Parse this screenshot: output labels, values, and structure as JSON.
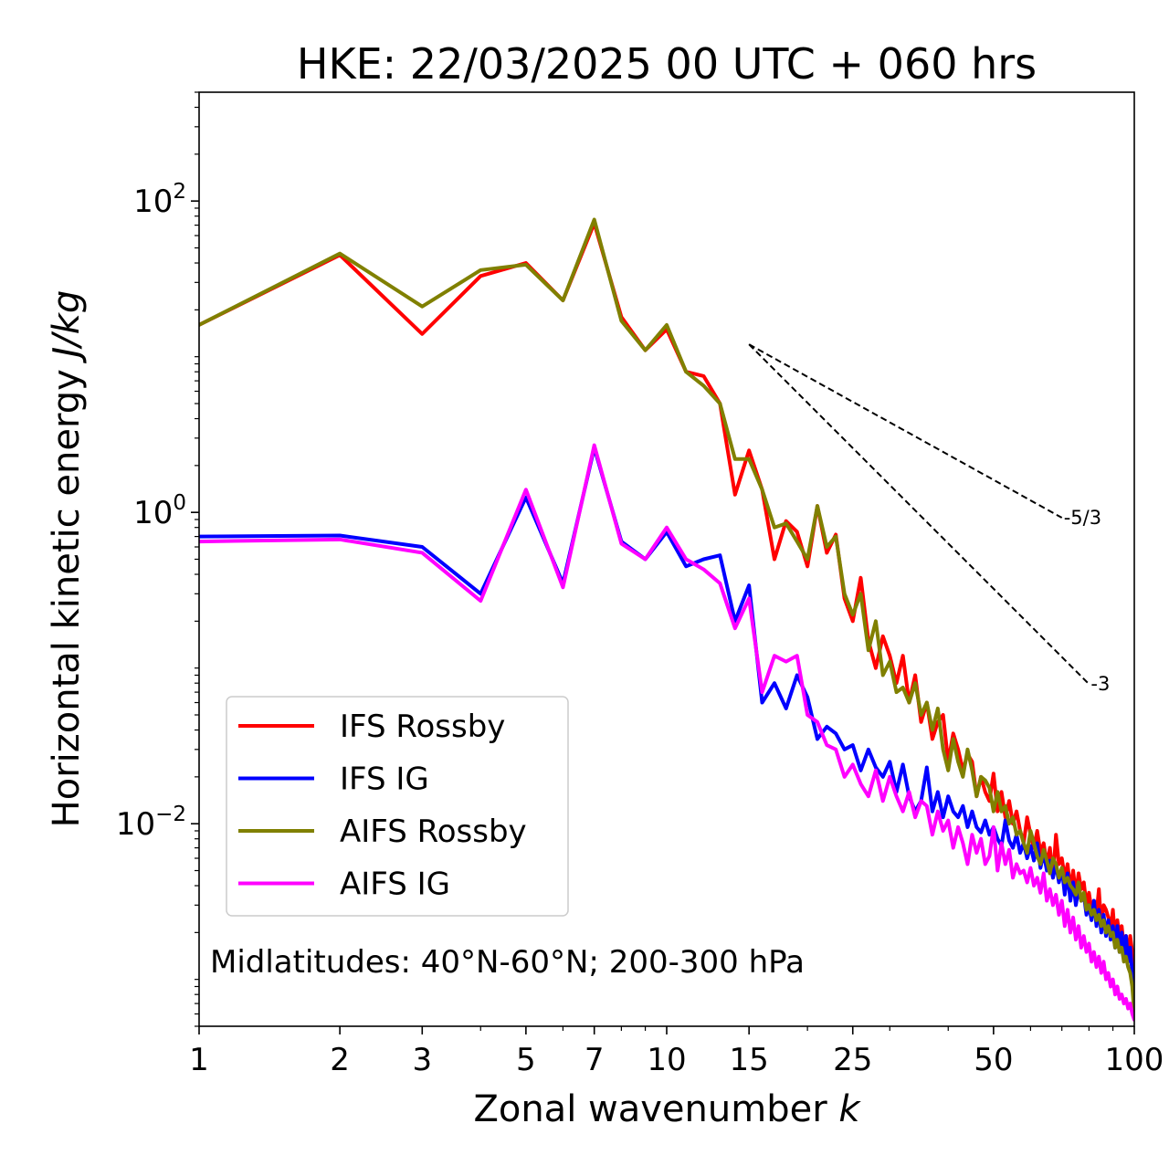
{
  "chart_data": {
    "type": "line",
    "title": "HKE: 22/03/2025 00 UTC + 060 hrs",
    "xlabel_main": "Zonal wavenumber ",
    "xlabel_var": "k",
    "ylabel_main": "Horizontal kinetic energy ",
    "ylabel_unit": "J/kg",
    "x_scale": "log",
    "y_scale": "log",
    "xlim": [
      1,
      100
    ],
    "ylim": [
      0.0005,
      500
    ],
    "x_ticks": [
      1,
      2,
      3,
      5,
      7,
      10,
      15,
      25,
      50,
      100
    ],
    "x_tick_labels": [
      "1",
      "2",
      "3",
      "5",
      "7",
      "10",
      "15",
      "25",
      "50",
      "100"
    ],
    "y_ticks": [
      {
        "value": 100,
        "base": "10",
        "exp": "2"
      },
      {
        "value": 1,
        "base": "10",
        "exp": "0"
      },
      {
        "value": 0.01,
        "base": "10",
        "exp": "−2"
      }
    ],
    "annotation": "Midlatitudes: 40°N-60°N; 200-300 hPa",
    "legend_position": "lower-left",
    "grid": false,
    "reference_lines": [
      {
        "label": "-5/3",
        "x": [
          15,
          70
        ],
        "y": [
          12.0,
          0.924
        ],
        "style": "dashed"
      },
      {
        "label": "-3",
        "x": [
          15,
          80
        ],
        "y": [
          12.0,
          0.0789
        ],
        "style": "dashed"
      }
    ],
    "series": [
      {
        "name": "IFS Rossby",
        "color": "#ff0000",
        "x": [
          1,
          2,
          3,
          4,
          5,
          6,
          7,
          8,
          9,
          10,
          11,
          12,
          13,
          14,
          15,
          16,
          17,
          18,
          19,
          20,
          21,
          22,
          23,
          24,
          25,
          26,
          27,
          28,
          29,
          30,
          31,
          32,
          33,
          34,
          35,
          36,
          37,
          38,
          39,
          40,
          41,
          42,
          43,
          44,
          45,
          46,
          47,
          48,
          49,
          50,
          51,
          52,
          53,
          54,
          55,
          56,
          57,
          58,
          59,
          60,
          61,
          62,
          63,
          64,
          65,
          66,
          67,
          68,
          69,
          70,
          71,
          72,
          73,
          74,
          75,
          76,
          77,
          78,
          79,
          80,
          81,
          82,
          83,
          84,
          85,
          86,
          87,
          88,
          89,
          90,
          91,
          92,
          93,
          94,
          95,
          96,
          97,
          98,
          99,
          100
        ],
        "y": [
          16.0,
          45.0,
          14.0,
          33.0,
          40.0,
          23.0,
          72.0,
          18.0,
          11.0,
          15.0,
          8.0,
          7.5,
          5.0,
          1.3,
          2.5,
          1.4,
          0.5,
          0.88,
          0.75,
          0.45,
          1.1,
          0.55,
          0.72,
          0.28,
          0.2,
          0.38,
          0.15,
          0.1,
          0.16,
          0.12,
          0.08,
          0.12,
          0.06,
          0.09,
          0.045,
          0.06,
          0.035,
          0.045,
          0.05,
          0.025,
          0.038,
          0.03,
          0.022,
          0.028,
          0.025,
          0.015,
          0.02,
          0.016,
          0.014,
          0.021,
          0.012,
          0.016,
          0.011,
          0.014,
          0.01,
          0.012,
          0.009,
          0.0075,
          0.011,
          0.0085,
          0.007,
          0.009,
          0.0065,
          0.0075,
          0.0055,
          0.007,
          0.0045,
          0.0085,
          0.0055,
          0.006,
          0.0045,
          0.0055,
          0.0038,
          0.005,
          0.0035,
          0.0048,
          0.0038,
          0.0042,
          0.003,
          0.0036,
          0.0028,
          0.0032,
          0.0026,
          0.0038,
          0.0022,
          0.003,
          0.0028,
          0.0025,
          0.0021,
          0.0028,
          0.0018,
          0.0024,
          0.0019,
          0.0022,
          0.0016,
          0.0019,
          0.0014,
          0.0019,
          0.0015,
          0.0012
        ]
      },
      {
        "name": "IFS IG",
        "color": "#0000ff",
        "x": [
          1,
          2,
          3,
          4,
          5,
          6,
          7,
          8,
          9,
          10,
          11,
          12,
          13,
          14,
          15,
          16,
          17,
          18,
          19,
          20,
          21,
          22,
          23,
          24,
          25,
          26,
          27,
          28,
          29,
          30,
          31,
          32,
          33,
          34,
          35,
          36,
          37,
          38,
          39,
          40,
          41,
          42,
          43,
          44,
          45,
          46,
          47,
          48,
          49,
          50,
          51,
          52,
          53,
          54,
          55,
          56,
          57,
          58,
          59,
          60,
          61,
          62,
          63,
          64,
          65,
          66,
          67,
          68,
          69,
          70,
          71,
          72,
          73,
          74,
          75,
          76,
          77,
          78,
          79,
          80,
          81,
          82,
          83,
          84,
          85,
          86,
          87,
          88,
          89,
          90,
          91,
          92,
          93,
          94,
          95,
          96,
          97,
          98,
          99,
          100
        ],
        "y": [
          0.7,
          0.71,
          0.6,
          0.3,
          1.25,
          0.35,
          2.6,
          0.65,
          0.5,
          0.75,
          0.45,
          0.5,
          0.53,
          0.2,
          0.34,
          0.06,
          0.08,
          0.055,
          0.09,
          0.065,
          0.035,
          0.042,
          0.038,
          0.03,
          0.032,
          0.022,
          0.03,
          0.023,
          0.02,
          0.025,
          0.016,
          0.024,
          0.015,
          0.012,
          0.014,
          0.023,
          0.012,
          0.016,
          0.011,
          0.015,
          0.012,
          0.011,
          0.013,
          0.0095,
          0.012,
          0.0095,
          0.0088,
          0.0105,
          0.0085,
          0.0095,
          0.008,
          0.0072,
          0.0105,
          0.0078,
          0.007,
          0.0085,
          0.0065,
          0.0075,
          0.006,
          0.0072,
          0.0058,
          0.0075,
          0.0052,
          0.0065,
          0.005,
          0.0058,
          0.0045,
          0.0055,
          0.0042,
          0.0052,
          0.0035,
          0.0048,
          0.0032,
          0.0042,
          0.003,
          0.0038,
          0.0032,
          0.0035,
          0.0026,
          0.003,
          0.0024,
          0.0032,
          0.0022,
          0.0028,
          0.002,
          0.0026,
          0.0019,
          0.0024,
          0.0018,
          0.0022,
          0.0016,
          0.0022,
          0.0015,
          0.002,
          0.0014,
          0.0019,
          0.0013,
          0.0016,
          0.0011,
          0.0008
        ]
      },
      {
        "name": "AIFS Rossby",
        "color": "#808000",
        "x": [
          1,
          2,
          3,
          4,
          5,
          6,
          7,
          8,
          9,
          10,
          11,
          12,
          13,
          14,
          15,
          16,
          17,
          18,
          19,
          20,
          21,
          22,
          23,
          24,
          25,
          26,
          27,
          28,
          29,
          30,
          31,
          32,
          33,
          34,
          35,
          36,
          37,
          38,
          39,
          40,
          41,
          42,
          43,
          44,
          45,
          46,
          47,
          48,
          49,
          50,
          51,
          52,
          53,
          54,
          55,
          56,
          57,
          58,
          59,
          60,
          61,
          62,
          63,
          64,
          65,
          66,
          67,
          68,
          69,
          70,
          71,
          72,
          73,
          74,
          75,
          76,
          77,
          78,
          79,
          80,
          81,
          82,
          83,
          84,
          85,
          86,
          87,
          88,
          89,
          90,
          91,
          92,
          93,
          94,
          95,
          96,
          97,
          98,
          99,
          100
        ],
        "y": [
          16.0,
          46.0,
          21.0,
          36.0,
          39.0,
          23.0,
          76.0,
          17.0,
          11.0,
          16.0,
          8.0,
          6.5,
          5.0,
          2.2,
          2.2,
          1.4,
          0.8,
          0.85,
          0.65,
          0.5,
          1.1,
          0.6,
          0.7,
          0.3,
          0.22,
          0.3,
          0.13,
          0.2,
          0.09,
          0.11,
          0.07,
          0.075,
          0.06,
          0.08,
          0.05,
          0.06,
          0.04,
          0.055,
          0.03,
          0.022,
          0.035,
          0.025,
          0.02,
          0.03,
          0.022,
          0.015,
          0.02,
          0.019,
          0.017,
          0.012,
          0.016,
          0.012,
          0.013,
          0.01,
          0.011,
          0.0085,
          0.009,
          0.0075,
          0.0065,
          0.009,
          0.0075,
          0.0062,
          0.0055,
          0.0068,
          0.0058,
          0.0048,
          0.006,
          0.0055,
          0.0045,
          0.0052,
          0.0042,
          0.0045,
          0.004,
          0.0038,
          0.0035,
          0.0042,
          0.0032,
          0.0036,
          0.0028,
          0.003,
          0.0026,
          0.0028,
          0.0024,
          0.0026,
          0.0022,
          0.0024,
          0.002,
          0.0022,
          0.0019,
          0.002,
          0.0016,
          0.0018,
          0.0015,
          0.0016,
          0.0013,
          0.0014,
          0.0012,
          0.0011,
          0.0009,
          0.0006
        ]
      },
      {
        "name": "AIFS IG",
        "color": "#ff00ff",
        "x": [
          1,
          2,
          3,
          4,
          5,
          6,
          7,
          8,
          9,
          10,
          11,
          12,
          13,
          14,
          15,
          16,
          17,
          18,
          19,
          20,
          21,
          22,
          23,
          24,
          25,
          26,
          27,
          28,
          29,
          30,
          31,
          32,
          33,
          34,
          35,
          36,
          37,
          38,
          39,
          40,
          41,
          42,
          43,
          44,
          45,
          46,
          47,
          48,
          49,
          50,
          51,
          52,
          53,
          54,
          55,
          56,
          57,
          58,
          59,
          60,
          61,
          62,
          63,
          64,
          65,
          66,
          67,
          68,
          69,
          70,
          71,
          72,
          73,
          74,
          75,
          76,
          77,
          78,
          79,
          80,
          81,
          82,
          83,
          84,
          85,
          86,
          87,
          88,
          89,
          90,
          91,
          92,
          93,
          94,
          95,
          96,
          97,
          98,
          99,
          100
        ],
        "y": [
          0.65,
          0.67,
          0.55,
          0.27,
          1.4,
          0.33,
          2.7,
          0.63,
          0.5,
          0.8,
          0.5,
          0.43,
          0.35,
          0.18,
          0.28,
          0.07,
          0.12,
          0.11,
          0.12,
          0.05,
          0.045,
          0.032,
          0.03,
          0.02,
          0.024,
          0.018,
          0.015,
          0.022,
          0.014,
          0.02,
          0.015,
          0.012,
          0.016,
          0.011,
          0.014,
          0.013,
          0.0085,
          0.012,
          0.009,
          0.0105,
          0.007,
          0.0095,
          0.0075,
          0.0055,
          0.0085,
          0.0065,
          0.008,
          0.0055,
          0.0062,
          0.0095,
          0.005,
          0.0075,
          0.0055,
          0.0068,
          0.0045,
          0.0055,
          0.0048,
          0.005,
          0.0042,
          0.0052,
          0.004,
          0.0045,
          0.0036,
          0.0048,
          0.0032,
          0.0038,
          0.003,
          0.0035,
          0.0026,
          0.0032,
          0.0022,
          0.0028,
          0.002,
          0.0025,
          0.0018,
          0.0022,
          0.0016,
          0.0019,
          0.0015,
          0.0017,
          0.0013,
          0.0015,
          0.0012,
          0.0014,
          0.0011,
          0.0013,
          0.001,
          0.0011,
          0.0009,
          0.001,
          0.0008,
          0.0009,
          0.00075,
          0.0008,
          0.0007,
          0.00075,
          0.00065,
          0.0007,
          0.0006,
          0.00055
        ]
      }
    ]
  }
}
